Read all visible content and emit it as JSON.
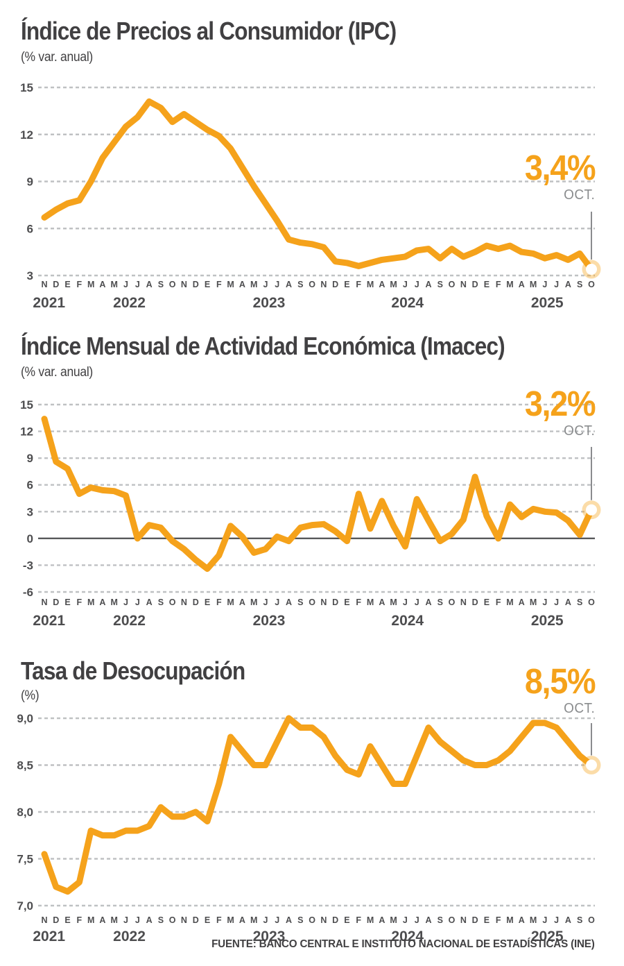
{
  "colors": {
    "accent": "#F5A21B",
    "halo": "rgba(245,162,27,0.38)",
    "grid": "#BFC1C3",
    "zero_line": "#58595B",
    "text_dark": "#414042",
    "axis_text": "#4D4D4F",
    "period_gray": "#8A8C8E",
    "connector": "#6D6E71"
  },
  "source": "FUENTE: BANCO CENTRAL E INSTITUTO NACIONAL DE ESTADÍSTICAS (INE)",
  "months": [
    "N",
    "D",
    "E",
    "F",
    "M",
    "A",
    "M",
    "J",
    "J",
    "A",
    "S",
    "O",
    "N",
    "D",
    "E",
    "F",
    "M",
    "A",
    "M",
    "J",
    "J",
    "A",
    "S",
    "O",
    "N",
    "D",
    "E",
    "F",
    "M",
    "A",
    "M",
    "J",
    "J",
    "A",
    "S",
    "O",
    "N",
    "D",
    "E",
    "F",
    "M",
    "A",
    "M",
    "J",
    "J",
    "A",
    "S",
    "O"
  ],
  "years": [
    {
      "label": "2021",
      "i": 0.4
    },
    {
      "label": "2022",
      "i": 7.3
    },
    {
      "label": "2023",
      "i": 19.3
    },
    {
      "label": "2024",
      "i": 31.2
    },
    {
      "label": "2025",
      "i": 43.2
    }
  ],
  "chart_data": [
    {
      "type": "line",
      "title": "Índice de Precios al Consumidor (IPC)",
      "subtitle": "(% var. anual)",
      "highlight": {
        "value": "3,4%",
        "period": "OCT."
      },
      "x_start": "NOV 2021",
      "x_end": "OCT 2025",
      "ylim": [
        3,
        15
      ],
      "yticks": [
        {
          "label": "15",
          "v": 15
        },
        {
          "label": "12",
          "v": 12
        },
        {
          "label": "9",
          "v": 9
        },
        {
          "label": "6",
          "v": 6
        },
        {
          "label": "3",
          "v": 3
        }
      ],
      "zero_solid": false,
      "grid": "dashed-horizontal",
      "values": [
        6.7,
        7.2,
        7.6,
        7.8,
        9.0,
        10.5,
        11.5,
        12.5,
        13.1,
        14.1,
        13.7,
        12.8,
        13.3,
        12.8,
        12.3,
        11.9,
        11.1,
        9.9,
        8.7,
        7.6,
        6.5,
        5.3,
        5.1,
        5.0,
        4.8,
        3.9,
        3.8,
        3.6,
        3.8,
        4.0,
        4.1,
        4.2,
        4.6,
        4.7,
        4.1,
        4.7,
        4.2,
        4.5,
        4.9,
        4.7,
        4.9,
        4.5,
        4.4,
        4.1,
        4.3,
        4.0,
        4.4,
        3.4
      ]
    },
    {
      "type": "line",
      "title": "Índice Mensual de Actividad Económica (Imacec)",
      "subtitle": "(% var. anual)",
      "highlight": {
        "value": "3,2%",
        "period": "OCT."
      },
      "x_start": "NOV 2021",
      "x_end": "OCT 2025",
      "ylim": [
        -6,
        15
      ],
      "yticks": [
        {
          "label": "15",
          "v": 15
        },
        {
          "label": "12",
          "v": 12
        },
        {
          "label": "9",
          "v": 9
        },
        {
          "label": "6",
          "v": 6
        },
        {
          "label": "3",
          "v": 3
        },
        {
          "label": "0",
          "v": 0
        },
        {
          "label": "-3",
          "v": -3
        },
        {
          "label": "-6",
          "v": -6
        }
      ],
      "zero_solid": true,
      "grid": "dashed-horizontal",
      "values": [
        13.4,
        8.6,
        7.8,
        5.0,
        5.7,
        5.4,
        5.3,
        4.8,
        0.0,
        1.5,
        1.2,
        -0.3,
        -1.2,
        -2.4,
        -3.4,
        -1.9,
        1.4,
        0.2,
        -1.6,
        -1.2,
        0.2,
        -0.3,
        1.2,
        1.5,
        1.6,
        0.8,
        -0.3,
        5.0,
        1.1,
        4.2,
        1.4,
        -0.9,
        4.4,
        2.0,
        -0.3,
        0.5,
        2.1,
        6.9,
        2.5,
        0.0,
        3.8,
        2.4,
        3.3,
        3.0,
        2.9,
        2.0,
        0.4,
        3.2
      ]
    },
    {
      "type": "line",
      "title": "Tasa de Desocupación",
      "subtitle": "(%)",
      "highlight": {
        "value": "8,5%",
        "period": "OCT."
      },
      "x_start": "NOV 2021",
      "x_end": "OCT 2025",
      "ylim": [
        7,
        9
      ],
      "yticks": [
        {
          "label": "9,0",
          "v": 9
        },
        {
          "label": "8,5",
          "v": 8.5
        },
        {
          "label": "8,0",
          "v": 8
        },
        {
          "label": "7,5",
          "v": 7.5
        },
        {
          "label": "7,0",
          "v": 7
        }
      ],
      "zero_solid": false,
      "grid": "dashed-horizontal",
      "values": [
        7.55,
        7.2,
        7.15,
        7.25,
        7.8,
        7.75,
        7.75,
        7.8,
        7.8,
        7.85,
        8.05,
        7.95,
        7.95,
        8.0,
        7.9,
        8.3,
        8.8,
        8.65,
        8.5,
        8.5,
        8.75,
        9.0,
        8.9,
        8.9,
        8.8,
        8.6,
        8.45,
        8.4,
        8.7,
        8.5,
        8.3,
        8.3,
        8.6,
        8.9,
        8.75,
        8.65,
        8.55,
        8.5,
        8.5,
        8.55,
        8.65,
        8.8,
        8.95,
        8.95,
        8.9,
        8.75,
        8.6,
        8.5
      ]
    }
  ]
}
